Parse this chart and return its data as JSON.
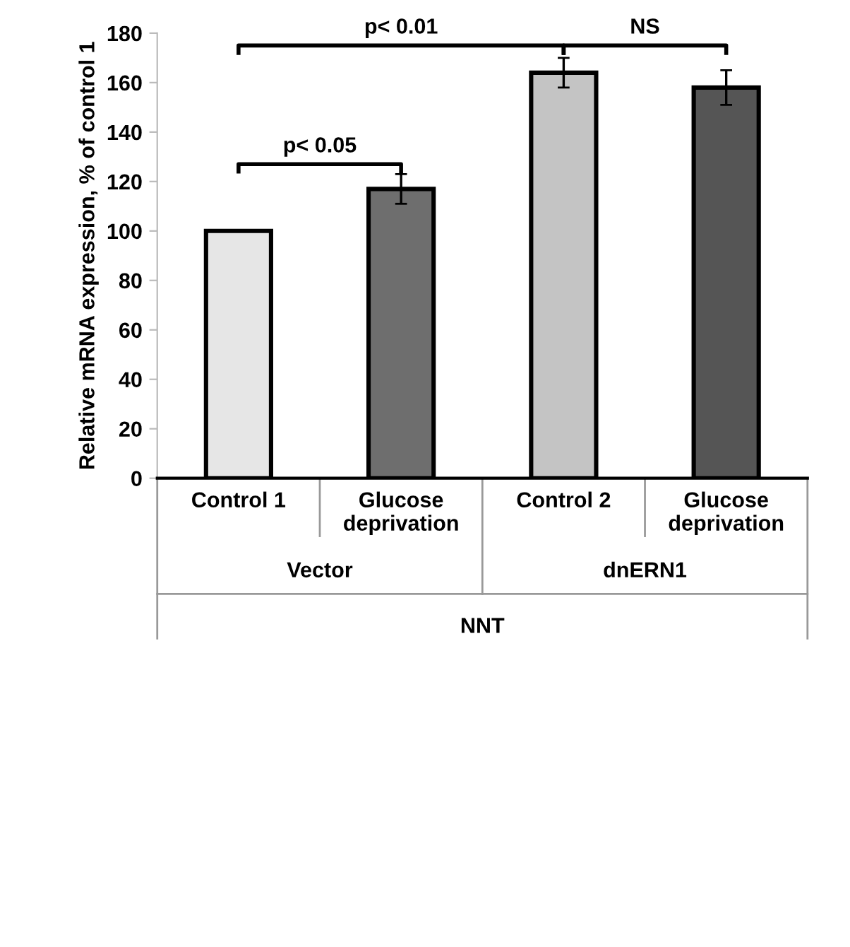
{
  "chart_data": {
    "type": "bar",
    "ylabel": "Relative mRNA expression, % of control 1",
    "categories": [
      "Control 1",
      "Glucose deprivation",
      "Control 2",
      "Glucose deprivation"
    ],
    "values": [
      100,
      117,
      164,
      158
    ],
    "errors": [
      null,
      6,
      6,
      7
    ],
    "colors": [
      "#e6e6e6",
      "#6e6e6e",
      "#c4c4c4",
      "#555555"
    ],
    "ylim": [
      0,
      180
    ],
    "yticks": [
      0,
      20,
      40,
      60,
      80,
      100,
      120,
      140,
      160,
      180
    ],
    "grid": false,
    "legend": false,
    "annotations": [
      "p< 0.05",
      "p< 0.01",
      "NS",
      "Vector",
      "dnERN1",
      "NNT"
    ]
  }
}
